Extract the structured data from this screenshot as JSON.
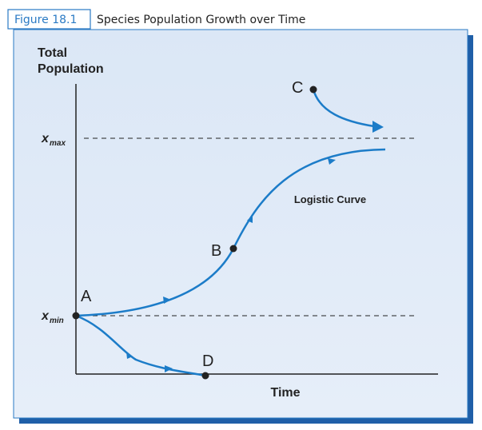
{
  "header": {
    "figure": "Figure 18.1",
    "title": "Species Population Growth over Time"
  },
  "axes": {
    "y_label": [
      "Total",
      "Population"
    ],
    "x_label": "Time"
  },
  "levels": {
    "max": {
      "symbol": "x",
      "subscript": "max"
    },
    "min": {
      "symbol": "x",
      "subscript": "min"
    }
  },
  "points": [
    "A",
    "B",
    "C",
    "D"
  ],
  "curve_label": "Logistic Curve"
}
